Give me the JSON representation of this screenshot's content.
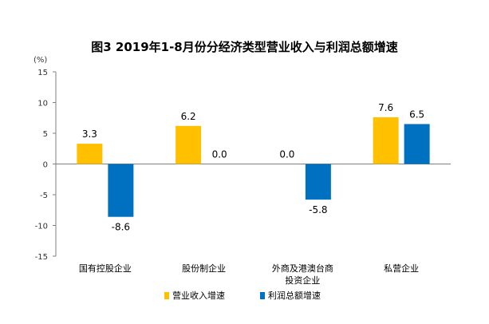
{
  "chart_data": {
    "type": "bar",
    "title": "图3 2019年1-8月份分经济类型营业收入与利润总额增速",
    "ylabel": "(%)",
    "xlabel": "",
    "ylim": [
      -15,
      15
    ],
    "yticks": [
      15,
      10,
      5,
      0,
      -5,
      -10,
      -15
    ],
    "grid": false,
    "legend_position": "bottom",
    "categories": [
      [
        "国有控股企业"
      ],
      [
        "股份制企业"
      ],
      [
        "外商及港澳台商",
        "投资企业"
      ],
      [
        "私营企业"
      ]
    ],
    "series": [
      {
        "name": "营业收入增速",
        "values": [
          3.3,
          6.2,
          0.0,
          7.6
        ],
        "labels": [
          "3.3",
          "6.2",
          "0.0",
          "7.6"
        ],
        "color": "#FFC000"
      },
      {
        "name": "利润总额增速",
        "values": [
          -8.6,
          0.0,
          -5.8,
          6.5
        ],
        "labels": [
          "-8.6",
          "0.0",
          "-5.8",
          "6.5"
        ],
        "color": "#0070C0"
      }
    ]
  }
}
